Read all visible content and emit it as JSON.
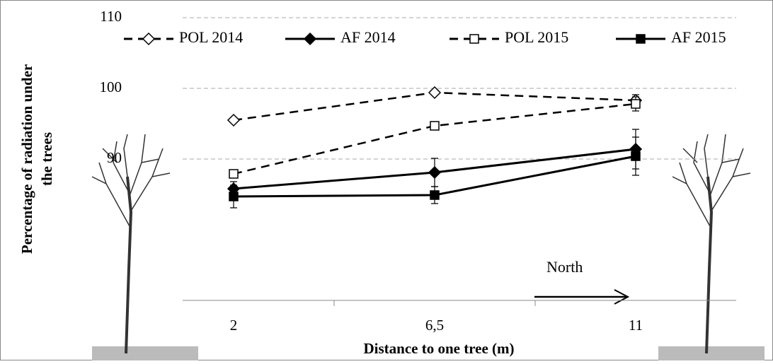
{
  "chart_data": {
    "type": "line",
    "y_label": [
      "Percentage of radiation under",
      "the trees"
    ],
    "x_label": "Distance to one tree (m)",
    "categories": [
      "2",
      "6,5",
      "11"
    ],
    "ylim": [
      70,
      110
    ],
    "yticks": [
      90,
      100,
      110
    ],
    "grid": true,
    "annotation": "North",
    "series": [
      {
        "name": "POL 2014",
        "color": "#000000",
        "dashed": true,
        "marker": "diamond",
        "filled": false,
        "values": [
          95.5,
          99.4,
          98.3
        ],
        "errors": [
          null,
          null,
          0.8
        ]
      },
      {
        "name": "AF 2014",
        "color": "#000000",
        "dashed": false,
        "marker": "diamond",
        "filled": true,
        "values": [
          85.8,
          88.1,
          91.4
        ],
        "errors": [
          1.0,
          2.0,
          2.8
        ]
      },
      {
        "name": "POL 2015",
        "color": "#000000",
        "dashed": true,
        "marker": "square",
        "filled": false,
        "values": [
          87.9,
          94.7,
          97.8
        ],
        "errors": [
          null,
          null,
          1.0
        ]
      },
      {
        "name": "AF 2015",
        "color": "#000000",
        "dashed": false,
        "marker": "square",
        "filled": true,
        "values": [
          84.7,
          84.9,
          90.4
        ],
        "errors": [
          1.6,
          1.2,
          2.7
        ]
      }
    ]
  }
}
